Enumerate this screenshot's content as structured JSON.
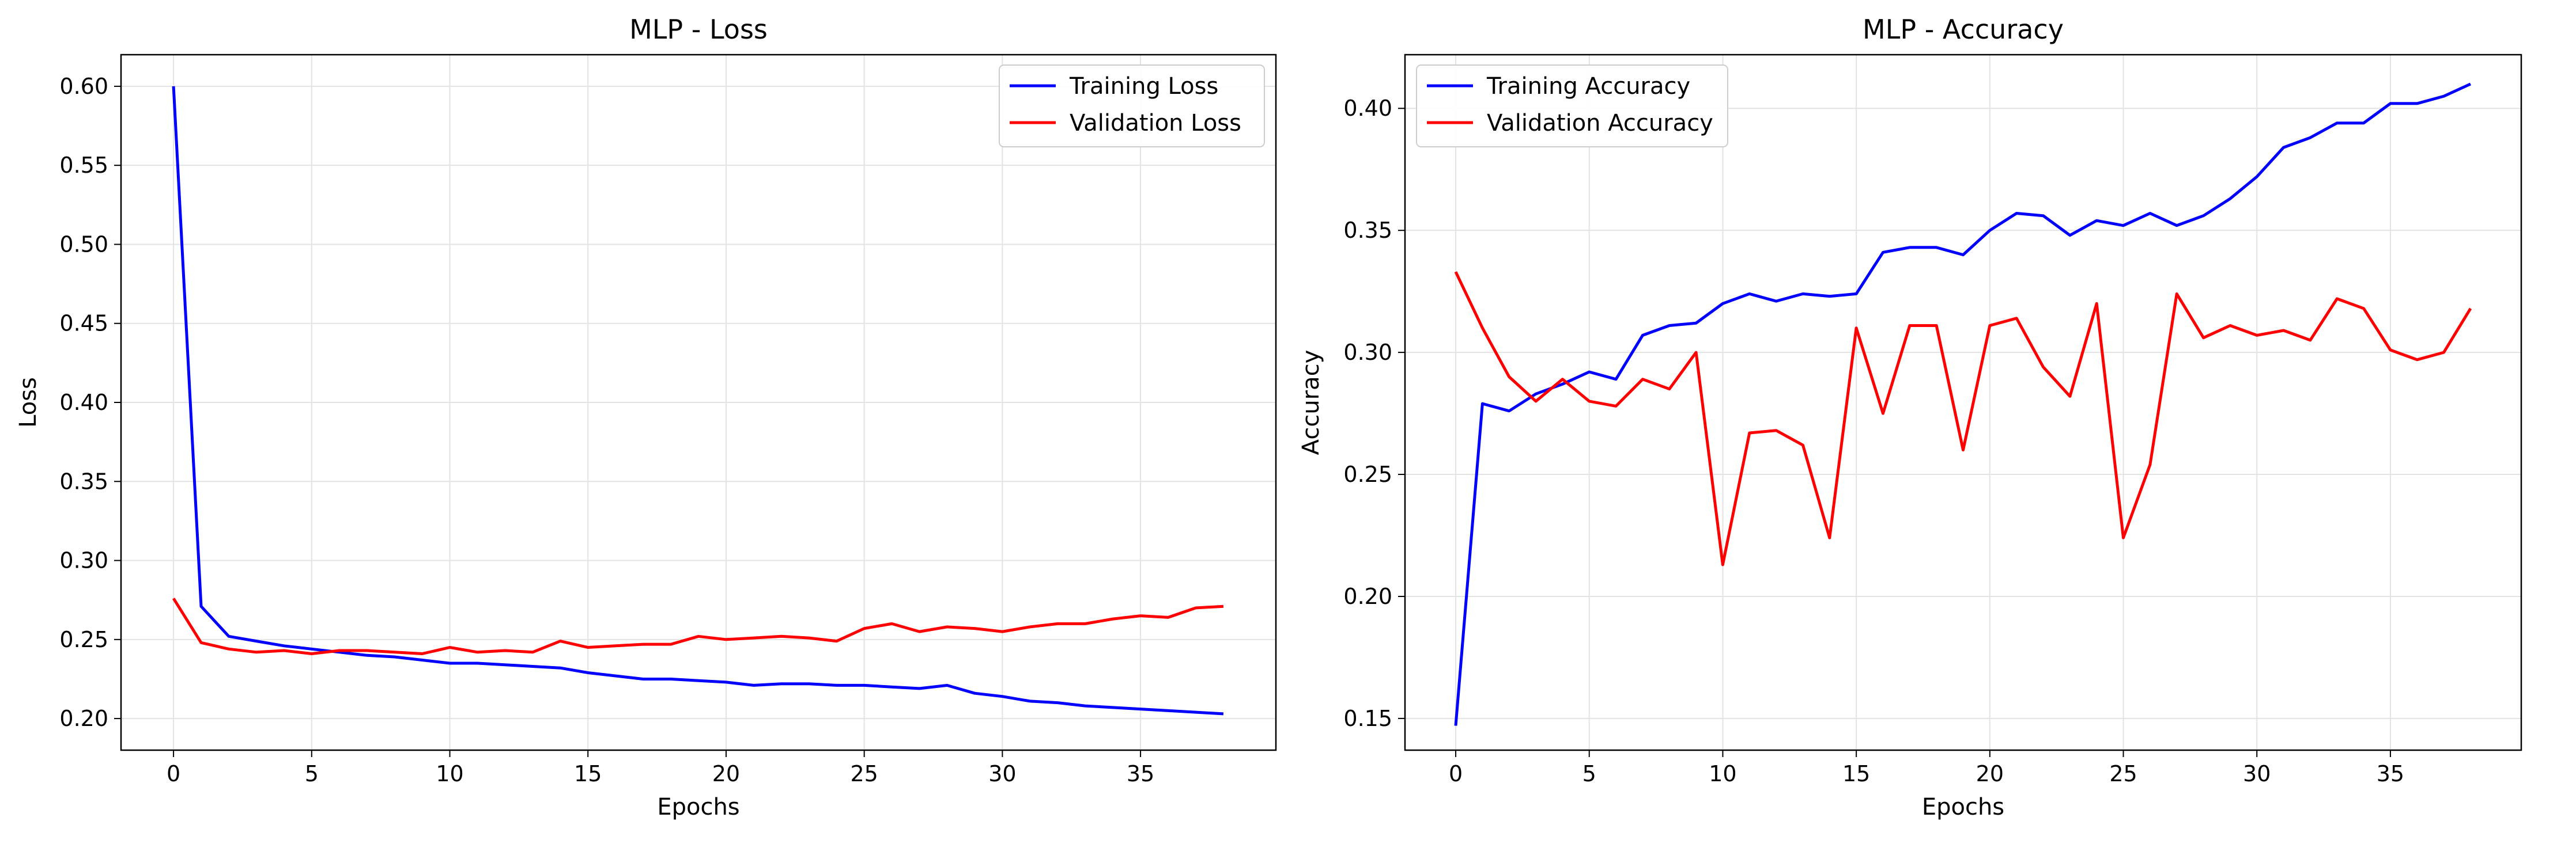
{
  "chart_data": [
    {
      "type": "line",
      "title": "MLP - Loss",
      "xlabel": "Epochs",
      "ylabel": "Loss",
      "xlim": [
        -1.9,
        39.9
      ],
      "ylim": [
        0.18,
        0.62
      ],
      "xticks": [
        0,
        5,
        10,
        15,
        20,
        25,
        30,
        35
      ],
      "yticks": [
        0.2,
        0.25,
        0.3,
        0.35,
        0.4,
        0.45,
        0.5,
        0.55,
        0.6
      ],
      "ytick_decimals": 2,
      "grid": true,
      "legend": "upper right",
      "x": [
        0,
        1,
        2,
        3,
        4,
        5,
        6,
        7,
        8,
        9,
        10,
        11,
        12,
        13,
        14,
        15,
        16,
        17,
        18,
        19,
        20,
        21,
        22,
        23,
        24,
        25,
        26,
        27,
        28,
        29,
        30,
        31,
        32,
        33,
        34,
        35,
        36,
        37,
        38
      ],
      "series": [
        {
          "name": "Training Loss",
          "color": "#0000ff",
          "values": [
            0.6,
            0.271,
            0.252,
            0.249,
            0.246,
            0.244,
            0.242,
            0.24,
            0.239,
            0.237,
            0.235,
            0.235,
            0.234,
            0.233,
            0.232,
            0.229,
            0.227,
            0.225,
            0.225,
            0.224,
            0.223,
            0.221,
            0.222,
            0.222,
            0.221,
            0.221,
            0.22,
            0.219,
            0.221,
            0.216,
            0.214,
            0.211,
            0.21,
            0.208,
            0.207,
            0.206,
            0.205,
            0.204,
            0.203
          ]
        },
        {
          "name": "Validation Loss",
          "color": "#ff0000",
          "values": [
            0.276,
            0.248,
            0.244,
            0.242,
            0.243,
            0.241,
            0.243,
            0.243,
            0.242,
            0.241,
            0.245,
            0.242,
            0.243,
            0.242,
            0.249,
            0.245,
            0.246,
            0.247,
            0.247,
            0.252,
            0.25,
            0.251,
            0.252,
            0.251,
            0.249,
            0.257,
            0.26,
            0.255,
            0.258,
            0.257,
            0.255,
            0.258,
            0.26,
            0.26,
            0.263,
            0.265,
            0.264,
            0.27,
            0.271
          ]
        }
      ]
    },
    {
      "type": "line",
      "title": "MLP - Accuracy",
      "xlabel": "Epochs",
      "ylabel": "Accuracy",
      "xlim": [
        -1.9,
        39.9
      ],
      "ylim": [
        0.137,
        0.422
      ],
      "xticks": [
        0,
        5,
        10,
        15,
        20,
        25,
        30,
        35
      ],
      "yticks": [
        0.15,
        0.2,
        0.25,
        0.3,
        0.35,
        0.4
      ],
      "ytick_decimals": 2,
      "grid": true,
      "legend": "upper left",
      "x": [
        0,
        1,
        2,
        3,
        4,
        5,
        6,
        7,
        8,
        9,
        10,
        11,
        12,
        13,
        14,
        15,
        16,
        17,
        18,
        19,
        20,
        21,
        22,
        23,
        24,
        25,
        26,
        27,
        28,
        29,
        30,
        31,
        32,
        33,
        34,
        35,
        36,
        37,
        38
      ],
      "series": [
        {
          "name": "Training Accuracy",
          "color": "#0000ff",
          "values": [
            0.147,
            0.279,
            0.276,
            0.283,
            0.287,
            0.292,
            0.289,
            0.307,
            0.311,
            0.312,
            0.32,
            0.324,
            0.321,
            0.324,
            0.323,
            0.324,
            0.341,
            0.343,
            0.343,
            0.34,
            0.35,
            0.357,
            0.356,
            0.348,
            0.354,
            0.352,
            0.357,
            0.352,
            0.356,
            0.363,
            0.372,
            0.384,
            0.388,
            0.394,
            0.394,
            0.402,
            0.402,
            0.405,
            0.41
          ]
        },
        {
          "name": "Validation Accuracy",
          "color": "#ff0000",
          "values": [
            0.333,
            0.31,
            0.29,
            0.28,
            0.289,
            0.28,
            0.278,
            0.289,
            0.285,
            0.3,
            0.213,
            0.267,
            0.268,
            0.262,
            0.224,
            0.31,
            0.275,
            0.311,
            0.311,
            0.26,
            0.311,
            0.314,
            0.294,
            0.282,
            0.32,
            0.224,
            0.254,
            0.324,
            0.306,
            0.311,
            0.307,
            0.309,
            0.305,
            0.322,
            0.318,
            0.301,
            0.297,
            0.3,
            0.318
          ]
        }
      ]
    }
  ]
}
